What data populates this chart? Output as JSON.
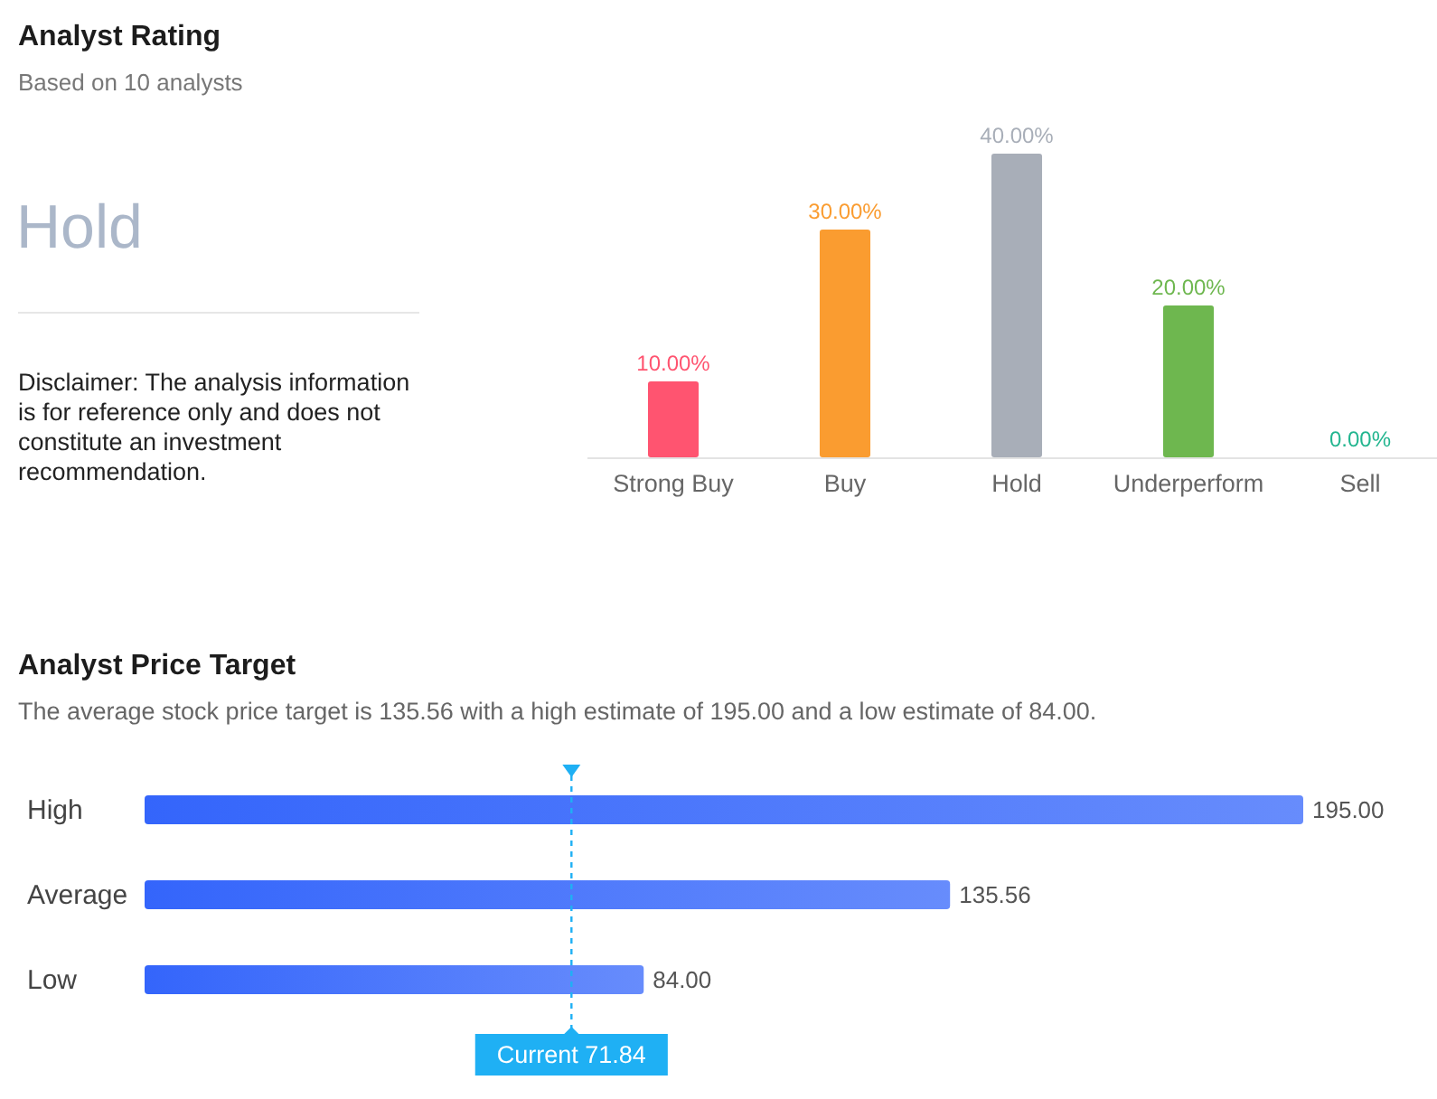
{
  "chart_data": [
    {
      "type": "other",
      "title": "Analyst Rating",
      "subtitle": "Based on 10 analysts",
      "annotations": [
        "Hold",
        "Disclaimer: The analysis information is for reference only and does not constitute an investment recommendation."
      ]
    },
    {
      "type": "bar",
      "categories": [
        "Strong Buy",
        "Buy",
        "Hold",
        "Underperform",
        "Sell"
      ],
      "values": [
        10,
        30,
        40,
        20,
        0
      ],
      "colors": [
        "#ff5470",
        "#fa9c30",
        "#a8aeb8",
        "#6eb74f",
        "#22b58f"
      ],
      "value_labels": [
        "10.00%",
        "30.00%",
        "40.00%",
        "20.00%",
        "0.00%"
      ]
    },
    {
      "type": "bar",
      "orientation": "horizontal",
      "title": "Analyst Price Target",
      "subtitle": "The average stock price target is 135.56 with a high estimate of 195.00 and a low estimate of 84.00.",
      "categories": [
        "High",
        "Average",
        "Low"
      ],
      "values": [
        195,
        135.56,
        84
      ],
      "color": "#3465fb",
      "value_labels": [
        "195.00",
        "135.56",
        "84.00"
      ],
      "ref_lines": [
        {
          "axis": "x",
          "value": 71.84,
          "label": "Current 71.84",
          "color": "#1fb0f4",
          "line_style": "dashed"
        }
      ]
    }
  ]
}
